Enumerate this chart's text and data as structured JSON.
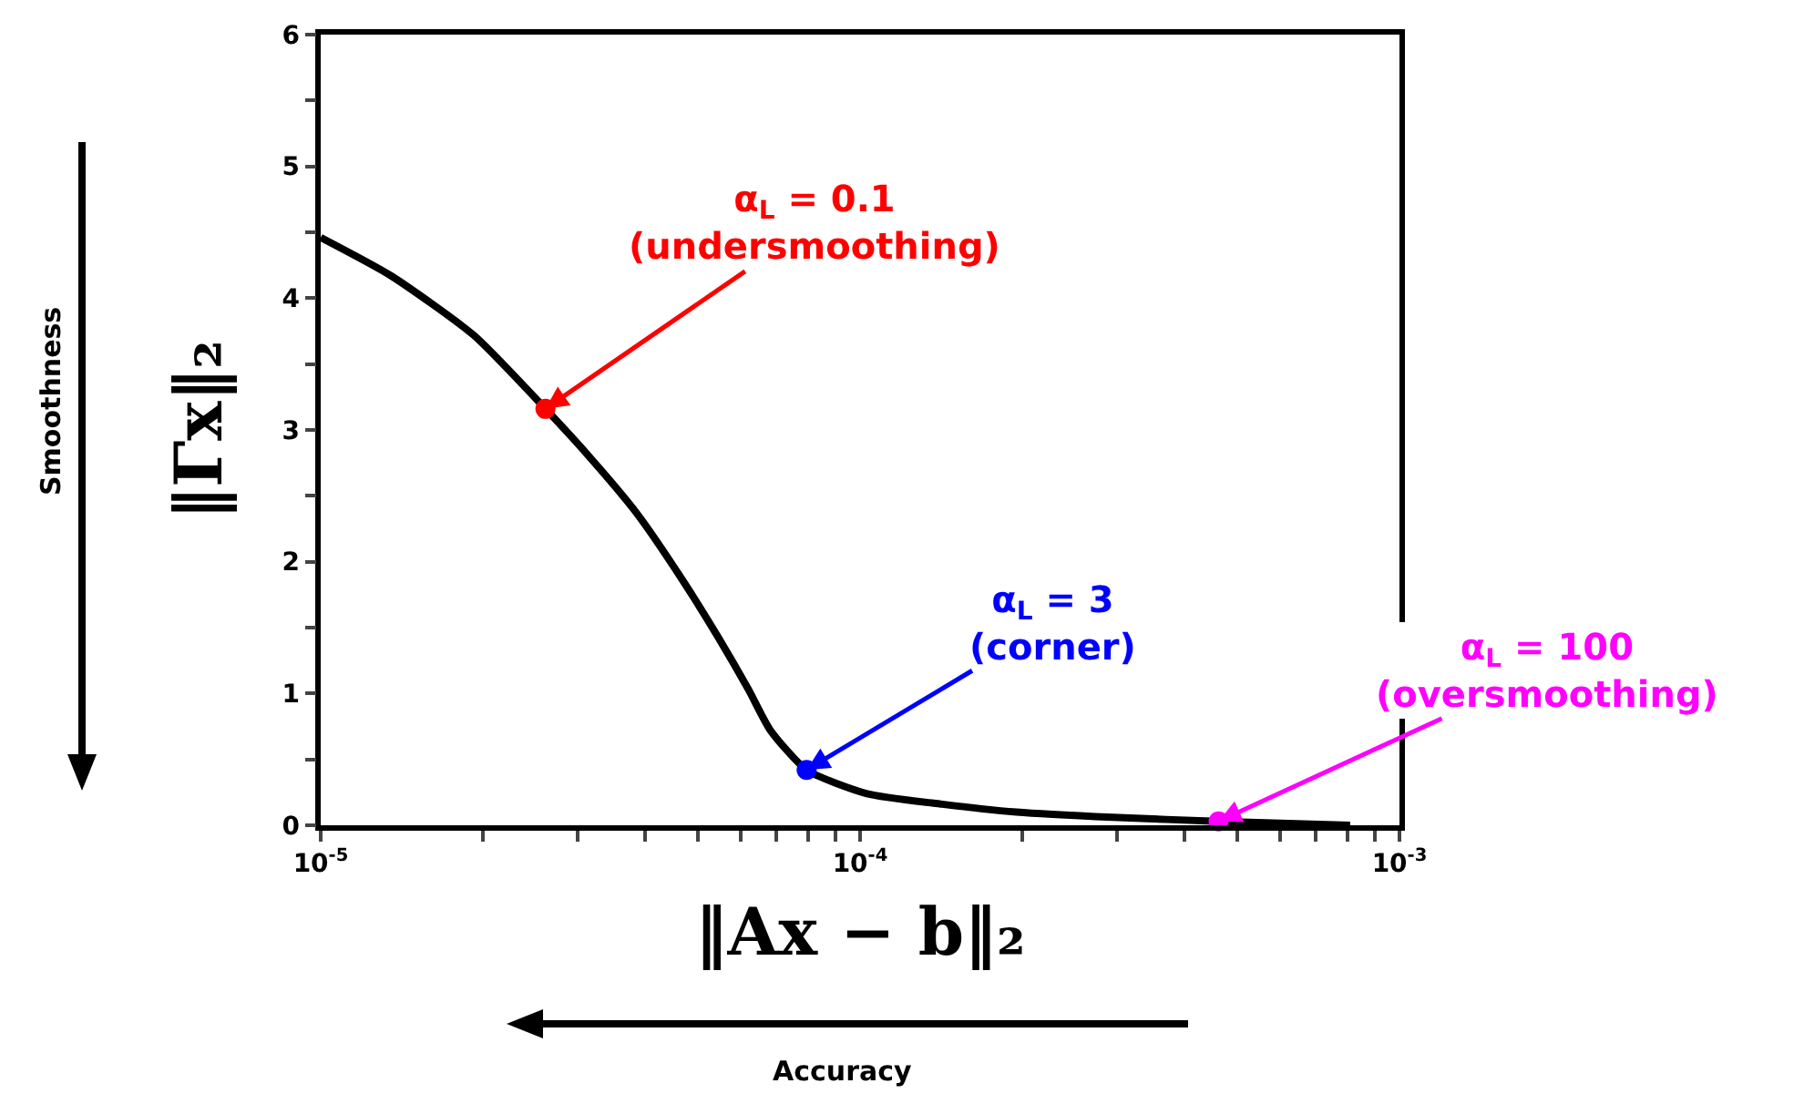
{
  "chart_data": {
    "type": "line",
    "xlabel": "‖Ax − b‖₂",
    "ylabel": "‖Γx‖₂",
    "log": "x",
    "grid": false,
    "xlim": [
      1e-05,
      0.001
    ],
    "xticks": [
      {
        "value": 1e-05,
        "label": "10$^{-5}$"
      },
      {
        "value": 2e-05,
        "label": null
      },
      {
        "value": 3e-05,
        "label": null
      },
      {
        "value": 4e-05,
        "label": null
      },
      {
        "value": 5e-05,
        "label": null
      },
      {
        "value": 6e-05,
        "label": null
      },
      {
        "value": 7e-05,
        "label": null
      },
      {
        "value": 8e-05,
        "label": null
      },
      {
        "value": 9e-05,
        "label": null
      },
      {
        "value": 0.0001,
        "label": "10$^{-4}$"
      },
      {
        "value": 0.0002,
        "label": null
      },
      {
        "value": 0.0003,
        "label": null
      },
      {
        "value": 0.0004,
        "label": null
      },
      {
        "value": 0.0005,
        "label": null
      },
      {
        "value": 0.0006,
        "label": null
      },
      {
        "value": 0.0007,
        "label": null
      },
      {
        "value": 0.0008,
        "label": null
      },
      {
        "value": 0.0009,
        "label": null
      },
      {
        "value": 0.001,
        "label": "10$^{-3}$"
      }
    ],
    "ylim": [
      0,
      6
    ],
    "yticks": [
      0,
      {
        "value": 0.5,
        "label": null
      },
      1,
      {
        "value": 1.5,
        "label": null
      },
      2,
      {
        "value": 2.5,
        "label": null
      },
      3,
      {
        "value": 3.5,
        "label": null
      },
      4,
      {
        "value": 4.5,
        "label": null
      },
      5,
      {
        "value": 5.5,
        "label": null
      },
      6
    ],
    "series": [
      {
        "color": "#000000",
        "line_style": "solid",
        "x": [
          1e-05,
          1.35e-05,
          1.92e-05,
          2.61e-05,
          3.19e-05,
          3.85e-05,
          4.67e-05,
          5.47e-05,
          6.21e-05,
          6.82e-05,
          7.96e-05,
          0.000103,
          0.000142,
          0.000195,
          0.000294,
          0.000462,
          0.00081
        ],
        "values": [
          4.46,
          4.17,
          3.72,
          3.16,
          2.77,
          2.37,
          1.87,
          1.42,
          1.03,
          0.72,
          0.42,
          0.24,
          0.16,
          0.1,
          0.06,
          0.03,
          0.0
        ]
      },
      {
        "type": "scatter",
        "x": [
          2.61e-05,
          7.96e-05,
          0.000462
        ],
        "values": [
          3.16,
          0.42,
          0.03
        ],
        "colors": [
          "#ff0000",
          "#0000ff",
          "#ff00ff"
        ]
      }
    ],
    "annotations": [
      {
        "text": "α$_{L}$ = 0.1\n(undersmoothing)",
        "x": 2.61e-05,
        "y": 3.16
      },
      {
        "text": "α$_{L}$ = 3\n(corner)",
        "x": 7.96e-05,
        "y": 0.42
      },
      {
        "text": "α$_{L}$ = 100\n(oversmoothing)",
        "x": 0.000462,
        "y": 0.03
      },
      "Smoothness",
      "Accuracy"
    ]
  }
}
